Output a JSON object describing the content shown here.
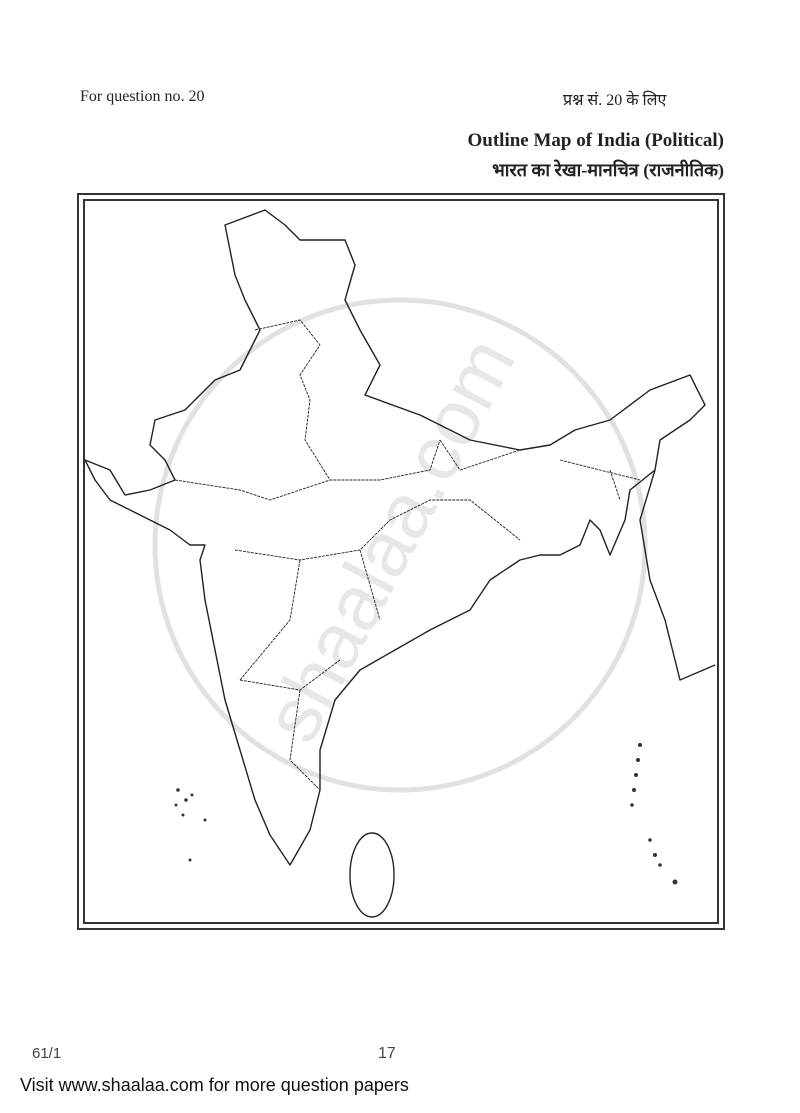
{
  "header": {
    "question_en": "For question no. 20",
    "question_hi": "प्रश्न सं. 20 के लिए",
    "title_en": "Outline Map of India (Political)",
    "title_hi": "भारत का रेखा-मानचित्र (राजनीतिक)"
  },
  "map": {
    "watermark": "shaalaa.com"
  },
  "footer": {
    "code": "61/1",
    "page_number": "17",
    "visit_text": "Visit www.shaalaa.com for more question papers"
  }
}
